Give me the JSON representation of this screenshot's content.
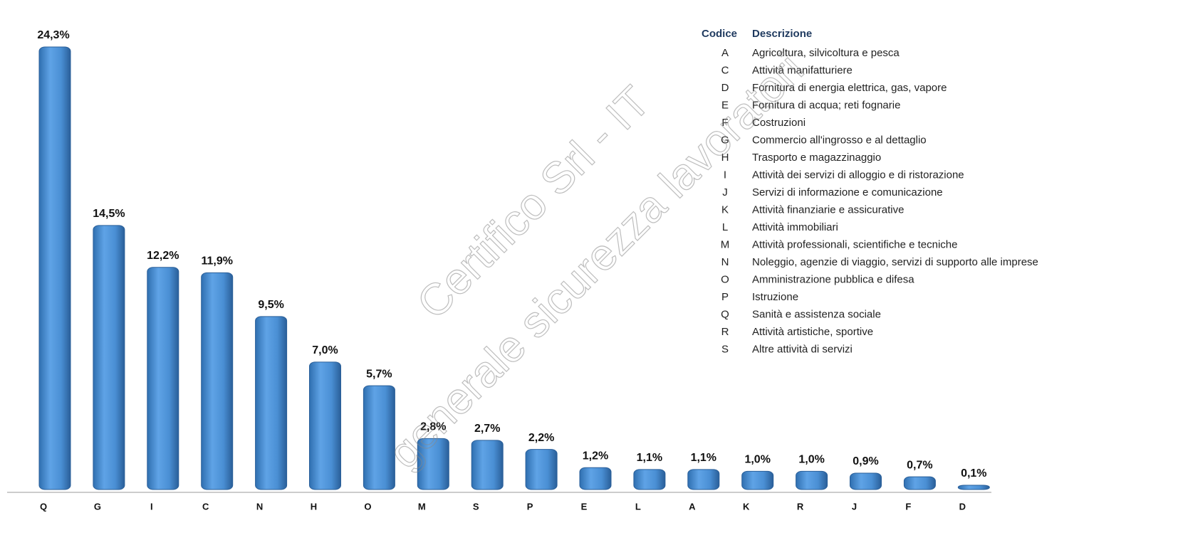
{
  "chart_data": {
    "type": "bar",
    "categories": [
      "Q",
      "G",
      "I",
      "C",
      "N",
      "H",
      "O",
      "M",
      "S",
      "P",
      "E",
      "L",
      "A",
      "K",
      "R",
      "J",
      "F",
      "D"
    ],
    "values": [
      24.3,
      14.5,
      12.2,
      11.9,
      9.5,
      7.0,
      5.7,
      2.8,
      2.7,
      2.2,
      1.2,
      1.1,
      1.1,
      1.0,
      1.0,
      0.9,
      0.7,
      0.1
    ],
    "value_labels": [
      "24,3%",
      "14,5%",
      "12,2%",
      "11,9%",
      "9,5%",
      "7,0%",
      "5,7%",
      "2,8%",
      "2,7%",
      "2,2%",
      "1,2%",
      "1,1%",
      "1,1%",
      "1,0%",
      "1,0%",
      "0,9%",
      "0,7%",
      "0,1%"
    ],
    "color": "#4a8fd4",
    "legend": {
      "header_code": "Codice",
      "header_description": "Descrizione",
      "codes": [
        "A",
        "C",
        "D",
        "E",
        "F",
        "G",
        "H",
        "I",
        "J",
        "K",
        "L",
        "M",
        "N",
        "O",
        "P",
        "Q",
        "R",
        "S"
      ],
      "descriptions": [
        "Agricoltura, silvicoltura e pesca",
        "Attività manifatturiere",
        "Fornitura di energia elettrica, gas, vapore",
        "Fornitura di acqua; reti fognarie",
        "Costruzioni",
        "Commercio all'ingrosso e al dettaglio",
        "Trasporto e magazzinaggio",
        "Attività dei servizi di alloggio e di ristorazione",
        "Servizi di informazione e comunicazione",
        "Attività finanziarie e assicurative",
        "Attività immobiliari",
        "Attività professionali, scientifiche e tecniche",
        "Noleggio, agenzie di viaggio, servizi di supporto alle imprese",
        "Amministrazione pubblica e difesa",
        "Istruzione",
        "Sanità e assistenza sociale",
        "Attività artistiche, sportive",
        "Altre attività di servizi"
      ]
    },
    "watermark": [
      "Certifico Srl - IT",
      "generale sicurezza lavoratori"
    ]
  }
}
